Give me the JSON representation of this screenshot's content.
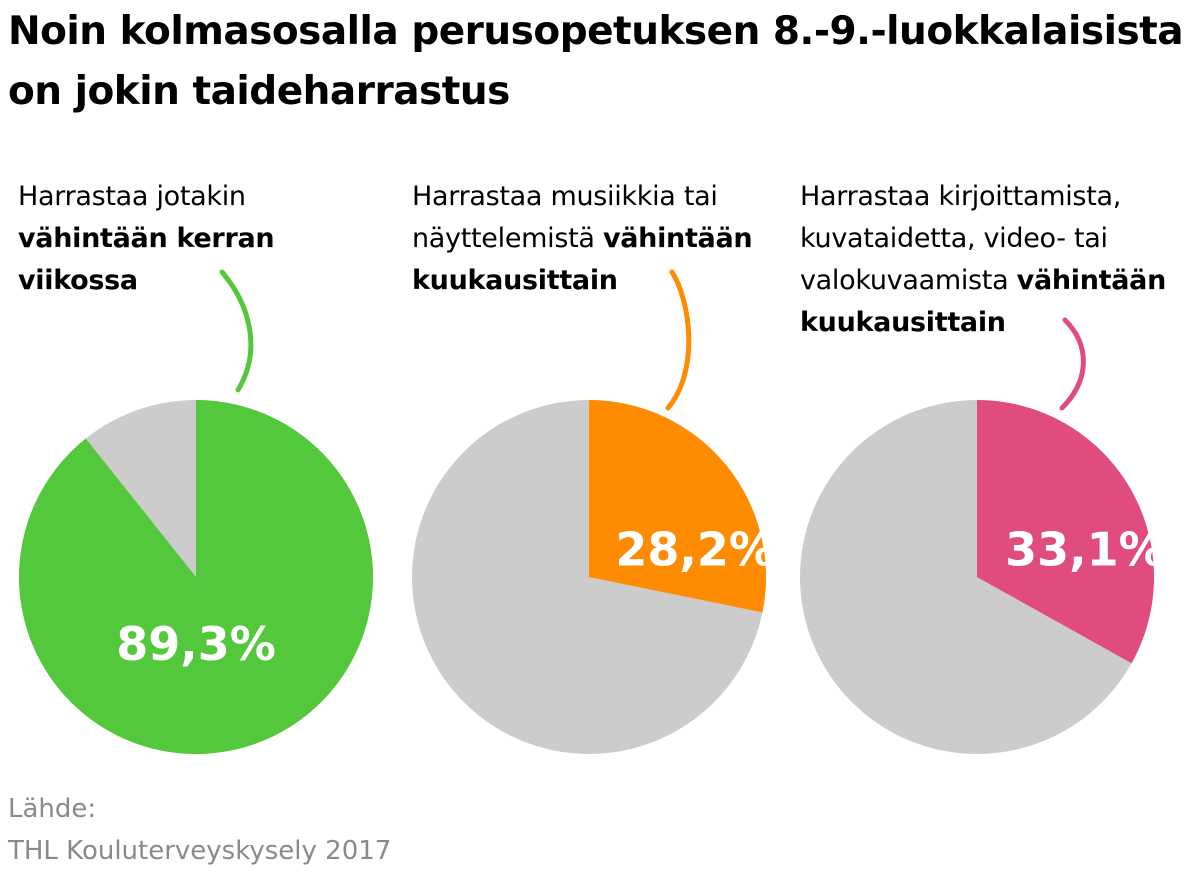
{
  "title": {
    "line1": "Noin kolmasosalla perusopetuksen 8.-9.-luokkalaisista",
    "line2": "on jokin taideharrastus"
  },
  "chart_data": [
    {
      "type": "pie",
      "label_normal": "Harrastaa jotakin",
      "label_bold": "vähintään kerran viikossa",
      "value": 89.3,
      "value_label": "89,3%",
      "color": "#54c83c",
      "rest_color": "#cccccc"
    },
    {
      "type": "pie",
      "label_normal": "Harrastaa musiikkia tai näyttelemistä",
      "label_bold": "vähintään kuukausittain",
      "value": 28.2,
      "value_label": "28,2%",
      "color": "#ff8c00",
      "rest_color": "#cccccc"
    },
    {
      "type": "pie",
      "label_normal": "Harrastaa kirjoittamista, kuvataidetta, video- tai valokuvaamista",
      "label_bold": "vähintään kuukausittain",
      "value": 33.1,
      "value_label": "33,1%",
      "color": "#e14c80",
      "rest_color": "#cccccc"
    }
  ],
  "source": {
    "heading": "Lähde:",
    "text": "THL Kouluterveyskysely 2017"
  }
}
